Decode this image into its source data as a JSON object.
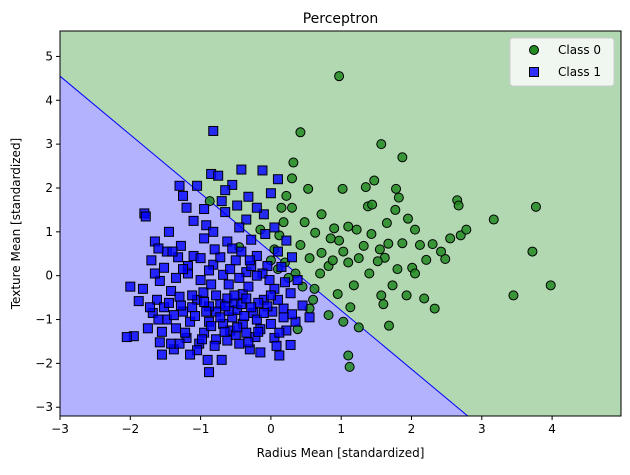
{
  "chart_data": {
    "type": "scatter",
    "title": "Perceptron",
    "xlabel": "Radius Mean [standardized]",
    "ylabel": "Texture Mean [standardized]",
    "xlim": [
      -3,
      4.98
    ],
    "ylim": [
      -3.2,
      5.58
    ],
    "xticks": [
      "−3",
      "−2",
      "−1",
      "0",
      "1",
      "2",
      "3",
      "4"
    ],
    "yticks": [
      "−3",
      "−2",
      "−1",
      "0",
      "1",
      "2",
      "3",
      "4",
      "5"
    ],
    "grid": false,
    "legend_position": "top-right",
    "decision_regions": {
      "boundary_line": [
        [
          -3,
          4.55
        ],
        [
          2.8,
          -3.2
        ]
      ],
      "region_colors": {
        "class_0": "#b2d8b2",
        "class_1": "#b2b2ff"
      },
      "boundary_color": "#0000ff"
    },
    "series": [
      {
        "name": "Class 0",
        "marker": "circle",
        "color": "#228b22",
        "edgecolor": "#000000",
        "points": [
          [
            0.97,
            4.55
          ],
          [
            0.42,
            3.27
          ],
          [
            1.57,
            3.0
          ],
          [
            3.77,
            1.57
          ],
          [
            3.98,
            -0.22
          ],
          [
            3.72,
            0.55
          ],
          [
            3.17,
            1.28
          ],
          [
            2.65,
            1.72
          ],
          [
            2.67,
            1.6
          ],
          [
            2.7,
            0.92
          ],
          [
            2.48,
            0.38
          ],
          [
            2.42,
            0.55
          ],
          [
            2.12,
            0.7
          ],
          [
            2.78,
            1.05
          ],
          [
            1.87,
            2.7
          ],
          [
            1.78,
            1.98
          ],
          [
            1.77,
            1.5
          ],
          [
            1.67,
            0.73
          ],
          [
            1.62,
            0.41
          ],
          [
            1.52,
            0.33
          ],
          [
            1.43,
            0.95
          ],
          [
            1.38,
            1.58
          ],
          [
            1.47,
            2.17
          ],
          [
            1.35,
            2.02
          ],
          [
            1.95,
            1.3
          ],
          [
            1.87,
            0.74
          ],
          [
            2.01,
            0.18
          ],
          [
            2.21,
            0.36
          ],
          [
            2.3,
            0.72
          ],
          [
            2.18,
            -0.52
          ],
          [
            1.93,
            -0.45
          ],
          [
            1.73,
            -0.22
          ],
          [
            1.6,
            -0.65
          ],
          [
            1.57,
            -0.45
          ],
          [
            1.68,
            -1.14
          ],
          [
            1.18,
            -0.22
          ],
          [
            1.13,
            -0.72
          ],
          [
            1.1,
            0.3
          ],
          [
            1.03,
            0.55
          ],
          [
            0.97,
            0.8
          ],
          [
            0.9,
            1.08
          ],
          [
            0.82,
            0.22
          ],
          [
            0.72,
            0.52
          ],
          [
            0.63,
            0.98
          ],
          [
            0.53,
            1.98
          ],
          [
            1.02,
            1.98
          ],
          [
            0.32,
            2.58
          ],
          [
            0.3,
            2.22
          ],
          [
            0.22,
            1.82
          ],
          [
            0.3,
            1.55
          ],
          [
            0.18,
            1.22
          ],
          [
            0.12,
            0.92
          ],
          [
            0.05,
            0.6
          ],
          [
            0.0,
            0.35
          ],
          [
            0.2,
            0.3
          ],
          [
            0.35,
            0.05
          ],
          [
            0.45,
            -0.25
          ],
          [
            0.6,
            -0.55
          ],
          [
            0.55,
            -0.75
          ],
          [
            0.38,
            -1.22
          ],
          [
            0.82,
            -0.9
          ],
          [
            1.03,
            -1.05
          ],
          [
            1.12,
            -2.08
          ],
          [
            1.1,
            -1.82
          ],
          [
            -0.87,
            1.7
          ],
          [
            0.15,
            1.55
          ],
          [
            0.42,
            0.7
          ],
          [
            0.55,
            0.4
          ],
          [
            0.7,
            0.05
          ],
          [
            0.88,
            0.35
          ],
          [
            1.25,
            0.4
          ],
          [
            1.4,
            0.05
          ],
          [
            1.55,
            0.6
          ],
          [
            1.8,
            0.15
          ],
          [
            2.05,
            1.05
          ],
          [
            1.65,
            1.2
          ],
          [
            1.22,
            1.05
          ],
          [
            1.32,
            0.68
          ],
          [
            0.95,
            -0.42
          ],
          [
            0.62,
            -0.3
          ],
          [
            0.25,
            -0.05
          ],
          [
            0.1,
            0.15
          ],
          [
            2.33,
            -0.75
          ],
          [
            3.45,
            -0.45
          ],
          [
            1.25,
            -1.18
          ],
          [
            -0.45,
            0.65
          ],
          [
            -0.15,
            1.05
          ],
          [
            0.48,
            1.22
          ],
          [
            0.72,
            1.4
          ],
          [
            1.1,
            1.12
          ],
          [
            1.82,
            1.78
          ],
          [
            2.55,
            0.85
          ],
          [
            2.05,
            0.05
          ],
          [
            1.44,
            1.62
          ],
          [
            0.85,
            0.85
          ]
        ]
      },
      {
        "name": "Class 1",
        "marker": "square",
        "color": "#0000ff",
        "edgecolor": "#000000",
        "points": [
          [
            -0.82,
            3.3
          ],
          [
            -1.8,
            1.42
          ],
          [
            -1.78,
            1.35
          ],
          [
            -1.3,
            2.05
          ],
          [
            -1.25,
            1.82
          ],
          [
            -0.85,
            2.32
          ],
          [
            -0.75,
            2.28
          ],
          [
            -0.42,
            2.42
          ],
          [
            -0.55,
            2.07
          ],
          [
            -0.12,
            2.4
          ],
          [
            -0.65,
            1.45
          ],
          [
            -0.92,
            1.15
          ],
          [
            -0.35,
            1.28
          ],
          [
            -0.1,
            1.4
          ],
          [
            0.05,
            1.1
          ],
          [
            -1.65,
            0.78
          ],
          [
            -1.48,
            0.55
          ],
          [
            -1.28,
            0.68
          ],
          [
            -1.1,
            0.45
          ],
          [
            -0.95,
            0.85
          ],
          [
            -2.0,
            -0.25
          ],
          [
            -1.95,
            -1.38
          ],
          [
            -1.58,
            -1.52
          ],
          [
            -1.55,
            -1.8
          ],
          [
            -1.38,
            -1.68
          ],
          [
            -1.2,
            -1.42
          ],
          [
            -1.02,
            -1.55
          ],
          [
            -0.9,
            -1.92
          ],
          [
            -0.88,
            -2.2
          ],
          [
            -0.7,
            -1.92
          ],
          [
            -0.45,
            -1.55
          ],
          [
            -0.3,
            -1.68
          ],
          [
            -0.15,
            -1.22
          ],
          [
            0.05,
            -1.42
          ],
          [
            0.12,
            -1.82
          ],
          [
            0.28,
            -1.58
          ],
          [
            0.35,
            -1.05
          ],
          [
            0.55,
            -0.95
          ],
          [
            -1.62,
            -0.55
          ],
          [
            -1.42,
            -0.35
          ],
          [
            -1.25,
            -0.82
          ],
          [
            -1.05,
            -0.55
          ],
          [
            -0.88,
            -1.05
          ],
          [
            -0.72,
            -0.65
          ],
          [
            -0.55,
            -0.95
          ],
          [
            -0.4,
            -0.42
          ],
          [
            -0.25,
            -0.85
          ],
          [
            -0.1,
            -0.55
          ],
          [
            0.05,
            -0.3
          ],
          [
            0.18,
            -0.75
          ],
          [
            -1.7,
            0.35
          ],
          [
            -1.52,
            0.18
          ],
          [
            -1.35,
            -0.05
          ],
          [
            -1.18,
            0.22
          ],
          [
            -1.0,
            -0.1
          ],
          [
            -0.82,
            0.25
          ],
          [
            -0.68,
            0.02
          ],
          [
            -0.5,
            0.35
          ],
          [
            -0.35,
            0.08
          ],
          [
            -0.2,
            0.45
          ],
          [
            -0.05,
            0.22
          ],
          [
            0.1,
            0.55
          ],
          [
            -1.45,
            1.0
          ],
          [
            -1.1,
            1.25
          ],
          [
            -0.82,
            1.0
          ],
          [
            -0.62,
            0.78
          ],
          [
            -0.45,
            1.1
          ],
          [
            -0.28,
            0.82
          ],
          [
            -0.08,
            0.95
          ],
          [
            0.22,
            0.8
          ],
          [
            -2.05,
            -1.4
          ],
          [
            -1.75,
            -1.2
          ],
          [
            -1.35,
            -1.2
          ],
          [
            -1.15,
            -1.05
          ],
          [
            -0.95,
            -1.3
          ],
          [
            -0.78,
            -1.45
          ],
          [
            -0.58,
            -1.25
          ],
          [
            -0.4,
            -1.1
          ],
          [
            -0.22,
            -1.4
          ],
          [
            0.0,
            -1.1
          ],
          [
            -1.58,
            -0.12
          ],
          [
            -1.3,
            -0.48
          ],
          [
            -1.12,
            -0.72
          ],
          [
            -0.96,
            -0.38
          ],
          [
            -0.78,
            -0.82
          ],
          [
            -0.62,
            -0.52
          ],
          [
            -0.48,
            -0.78
          ],
          [
            -0.32,
            -0.25
          ],
          [
            -0.18,
            -0.62
          ],
          [
            0.02,
            -0.82
          ],
          [
            -1.48,
            -1.0
          ],
          [
            -1.22,
            -1.3
          ],
          [
            -0.88,
            -0.7
          ],
          [
            -0.68,
            -1.1
          ],
          [
            -0.52,
            -0.62
          ],
          [
            -0.38,
            -0.92
          ],
          [
            -0.2,
            -1.0
          ],
          [
            -0.05,
            -0.7
          ],
          [
            0.28,
            -0.4
          ],
          [
            0.45,
            -0.68
          ],
          [
            -1.88,
            -0.58
          ],
          [
            -1.68,
            -0.85
          ],
          [
            -1.52,
            -0.72
          ],
          [
            -1.38,
            -0.9
          ],
          [
            -1.08,
            -0.92
          ],
          [
            -0.92,
            -0.82
          ],
          [
            -0.72,
            -0.95
          ],
          [
            -0.6,
            -0.8
          ],
          [
            -0.42,
            -0.65
          ],
          [
            -0.28,
            -0.72
          ],
          [
            -1.32,
            0.42
          ],
          [
            -1.18,
            0.05
          ],
          [
            -0.88,
            0.12
          ],
          [
            -0.72,
            0.42
          ],
          [
            -0.58,
            0.15
          ],
          [
            -0.42,
            0.55
          ],
          [
            -0.28,
            0.22
          ],
          [
            -0.12,
            0.05
          ],
          [
            0.15,
            0.2
          ],
          [
            0.3,
            0.42
          ],
          [
            -0.95,
            1.52
          ],
          [
            -0.7,
            1.7
          ],
          [
            -0.48,
            1.6
          ],
          [
            -0.32,
            1.8
          ],
          [
            -0.2,
            1.55
          ],
          [
            -1.05,
            2.05
          ],
          [
            -0.65,
            1.95
          ],
          [
            0.0,
            1.88
          ],
          [
            0.1,
            2.2
          ],
          [
            -1.2,
            1.55
          ],
          [
            -1.6,
            -1.0
          ],
          [
            -1.42,
            -1.55
          ],
          [
            -1.05,
            -1.7
          ],
          [
            -0.8,
            -1.6
          ],
          [
            -0.62,
            -1.48
          ],
          [
            -0.5,
            -1.35
          ],
          [
            -0.32,
            -1.52
          ],
          [
            -0.15,
            -1.75
          ],
          [
            0.08,
            -1.6
          ],
          [
            0.22,
            -1.25
          ],
          [
            -1.82,
            -0.3
          ],
          [
            -1.65,
            0.05
          ],
          [
            -1.4,
            0.55
          ],
          [
            -0.8,
            0.6
          ],
          [
            -0.55,
            0.62
          ],
          [
            -1.0,
            0.4
          ],
          [
            -1.25,
            0.15
          ],
          [
            -0.85,
            -0.2
          ],
          [
            -0.6,
            -0.2
          ],
          [
            -0.45,
            -0.05
          ],
          [
            -0.2,
            0.0
          ],
          [
            -0.02,
            -0.1
          ],
          [
            0.2,
            -0.15
          ],
          [
            0.38,
            -0.1
          ],
          [
            0.1,
            -0.55
          ],
          [
            -1.3,
            -1.55
          ],
          [
            -1.15,
            -1.8
          ],
          [
            -0.98,
            -1.45
          ],
          [
            -0.85,
            -1.15
          ],
          [
            -0.66,
            -1.28
          ],
          [
            -0.48,
            -1.18
          ],
          [
            -0.35,
            -1.3
          ],
          [
            -0.18,
            -1.28
          ],
          [
            0.12,
            -1.3
          ],
          [
            0.3,
            -0.88
          ],
          [
            -1.55,
            -1.28
          ],
          [
            -1.72,
            -0.72
          ],
          [
            -1.45,
            -0.62
          ],
          [
            -1.28,
            -0.68
          ],
          [
            -1.12,
            -0.45
          ],
          [
            -0.95,
            -0.6
          ],
          [
            -0.78,
            -0.45
          ],
          [
            -0.65,
            -0.7
          ],
          [
            -0.52,
            -0.45
          ],
          [
            -0.35,
            -0.52
          ],
          [
            -0.1,
            -0.85
          ],
          [
            0.0,
            -0.45
          ],
          [
            0.18,
            -0.95
          ],
          [
            -1.6,
            0.62
          ],
          [
            -0.3,
            0.35
          ]
        ]
      }
    ]
  }
}
